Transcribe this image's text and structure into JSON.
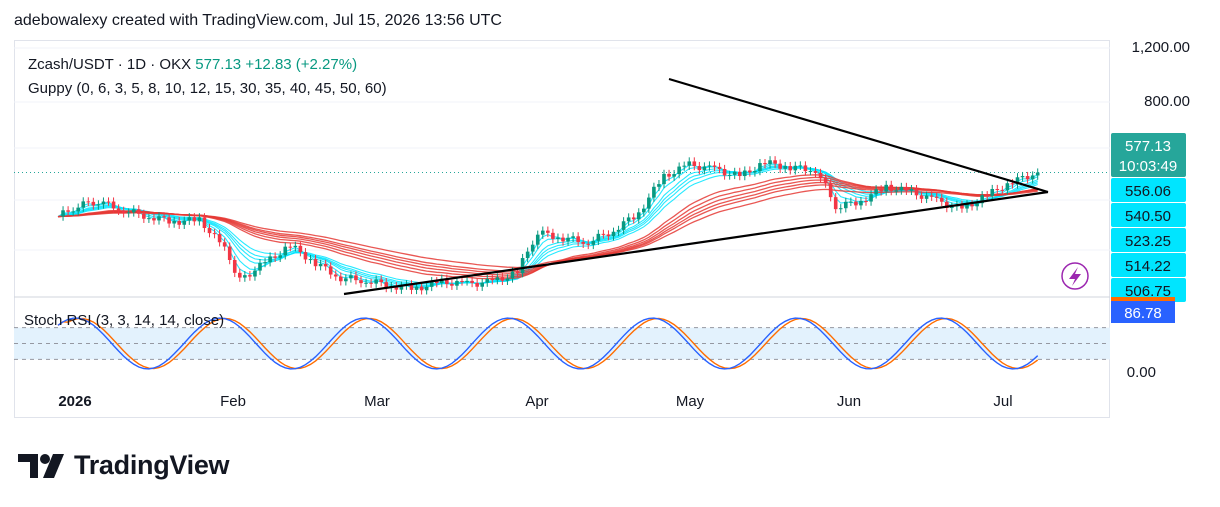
{
  "header": {
    "attribution": "adebowalexy created with TradingView.com, Jul 15, 2026 13:56 UTC"
  },
  "legend": {
    "symbol": "Zcash/USDT · 1D · OKX",
    "last": "577.13",
    "change": "+12.83 (+2.27%)",
    "indicator": "Guppy (0, 6, 3, 5, 8, 10, 12, 15, 30, 35, 40, 45, 50, 60)",
    "rsi_label": "Stoch RSI (3, 3, 14, 14, close)"
  },
  "price_axis": {
    "ticks": [
      "1,200.00",
      "800.00"
    ],
    "badges": [
      {
        "label": "577.13",
        "sub": "10:03:49",
        "color": "#26a69a"
      },
      {
        "label": "556.06",
        "color": "#00e5ff"
      },
      {
        "label": "540.50",
        "color": "#00e5ff"
      },
      {
        "label": "523.25",
        "color": "#00e5ff"
      },
      {
        "label": "514.22",
        "color": "#00e5ff"
      },
      {
        "label": "506.75",
        "color": "#00e5ff"
      }
    ]
  },
  "rsi_axis": {
    "value": "86.78",
    "value_color": "#2962ff",
    "zero": "0.00"
  },
  "time_axis": [
    "2026",
    "Feb",
    "Mar",
    "Apr",
    "May",
    "Jun",
    "Jul"
  ],
  "colors": {
    "up": "#089981",
    "down": "#f23645",
    "fast_ema": "#00e5ff",
    "slow_ema": "#e53935",
    "k_line": "#2962ff",
    "d_line": "#ff6d00",
    "rsi_band": "#e3f2fd"
  },
  "branding": {
    "logo": "TradingView"
  },
  "chart_data": {
    "type": "candlestick",
    "symbol": "Zcash/USDT",
    "timeframe": "1D",
    "exchange": "OKX",
    "y_scale": "log",
    "close_series": [
      {
        "date": "2026-01-01",
        "value": 420
      },
      {
        "date": "2026-01-05",
        "value": 455
      },
      {
        "date": "2026-01-09",
        "value": 470
      },
      {
        "date": "2026-01-14",
        "value": 440
      },
      {
        "date": "2026-01-19",
        "value": 420
      },
      {
        "date": "2026-01-24",
        "value": 405
      },
      {
        "date": "2026-01-29",
        "value": 410
      },
      {
        "date": "2026-02-03",
        "value": 330
      },
      {
        "date": "2026-02-06",
        "value": 265
      },
      {
        "date": "2026-02-11",
        "value": 300
      },
      {
        "date": "2026-02-16",
        "value": 340
      },
      {
        "date": "2026-02-21",
        "value": 300
      },
      {
        "date": "2026-02-26",
        "value": 270
      },
      {
        "date": "2026-03-03",
        "value": 265
      },
      {
        "date": "2026-03-08",
        "value": 255
      },
      {
        "date": "2026-03-13",
        "value": 250
      },
      {
        "date": "2026-03-18",
        "value": 262
      },
      {
        "date": "2026-03-23",
        "value": 258
      },
      {
        "date": "2026-03-28",
        "value": 262
      },
      {
        "date": "2026-04-02",
        "value": 280
      },
      {
        "date": "2026-04-06",
        "value": 375
      },
      {
        "date": "2026-04-11",
        "value": 360
      },
      {
        "date": "2026-04-16",
        "value": 350
      },
      {
        "date": "2026-04-21",
        "value": 380
      },
      {
        "date": "2026-04-26",
        "value": 430
      },
      {
        "date": "2026-05-01",
        "value": 560
      },
      {
        "date": "2026-05-06",
        "value": 610
      },
      {
        "date": "2026-05-11",
        "value": 590
      },
      {
        "date": "2026-05-16",
        "value": 560
      },
      {
        "date": "2026-05-21",
        "value": 620
      },
      {
        "date": "2026-05-26",
        "value": 600
      },
      {
        "date": "2026-05-31",
        "value": 590
      },
      {
        "date": "2026-06-04",
        "value": 450
      },
      {
        "date": "2026-06-09",
        "value": 470
      },
      {
        "date": "2026-06-14",
        "value": 520
      },
      {
        "date": "2026-06-19",
        "value": 500
      },
      {
        "date": "2026-06-24",
        "value": 470
      },
      {
        "date": "2026-06-29",
        "value": 440
      },
      {
        "date": "2026-07-04",
        "value": 490
      },
      {
        "date": "2026-07-09",
        "value": 540
      },
      {
        "date": "2026-07-14",
        "value": 577.13
      }
    ],
    "overlay": "Guppy Multiple Moving Average",
    "pattern": "symmetrical triangle (black trendlines)",
    "last_price": 577.13,
    "change": 12.83,
    "change_pct": 2.27,
    "guppy_levels": [
      556.06,
      540.5,
      523.25,
      514.22,
      506.75
    ],
    "stoch_rsi": {
      "params": "3, 3, 14, 14, close",
      "current": 86.78,
      "ylim": [
        0,
        100
      ]
    },
    "ylim": [
      230,
      1300
    ],
    "x_ticks": [
      "2026",
      "Feb",
      "Mar",
      "Apr",
      "May",
      "Jun",
      "Jul"
    ]
  }
}
